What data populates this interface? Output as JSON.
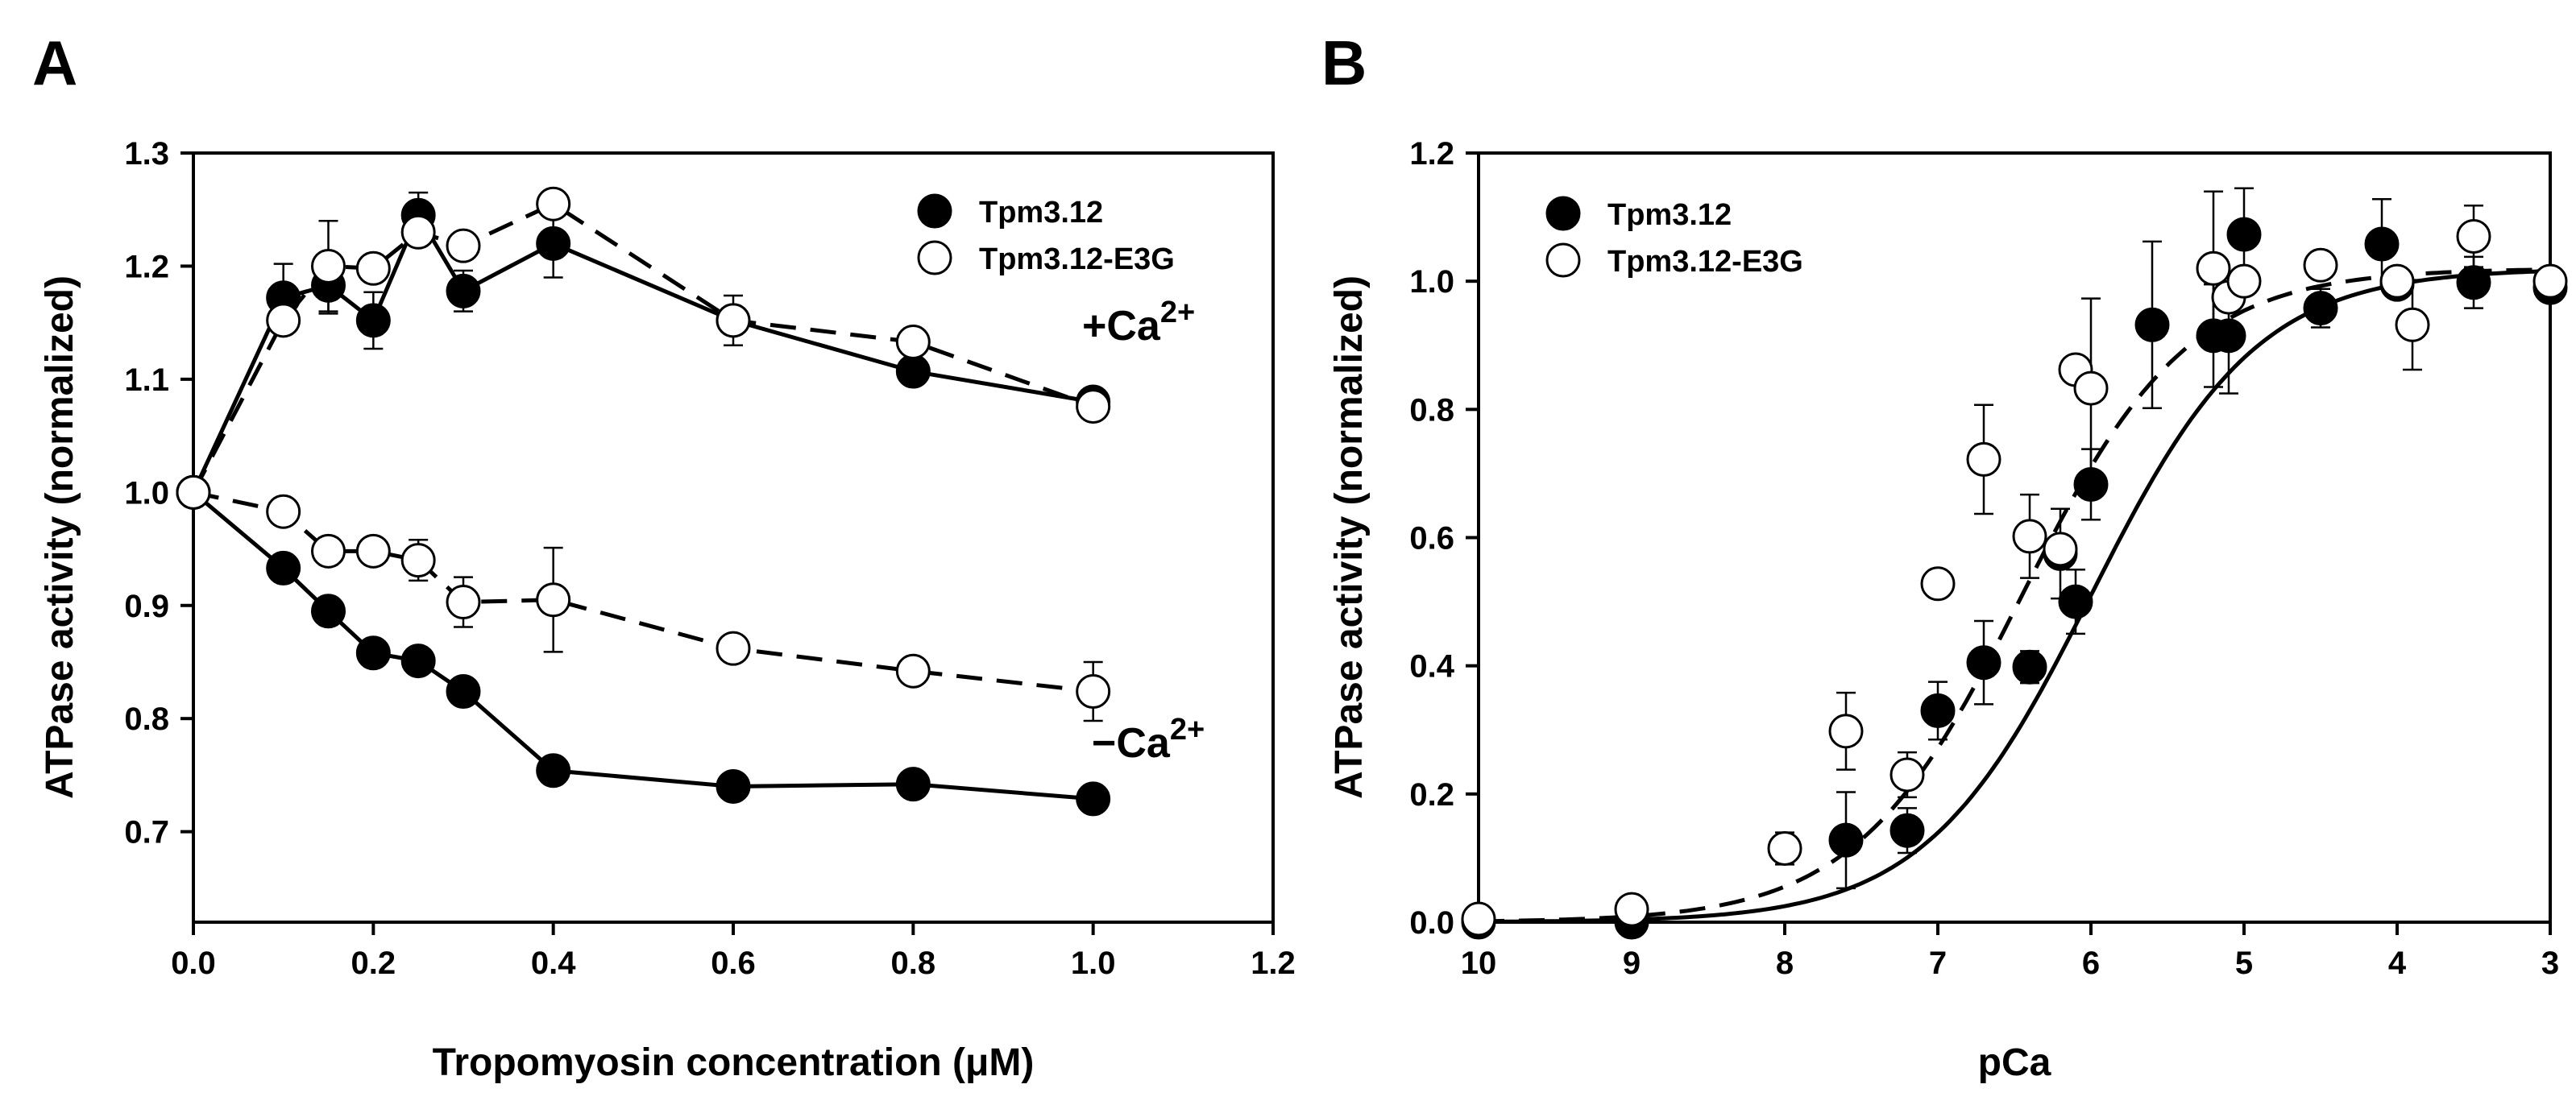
{
  "chart_data": [
    {
      "panel": "A",
      "type": "line",
      "xlabel": "Tropomyosin concentration (μM)",
      "ylabel": "ATPase activity (normalized)",
      "xlim": [
        0.0,
        1.2
      ],
      "ylim": [
        0.62,
        1.3
      ],
      "xticks": [
        0.0,
        0.2,
        0.4,
        0.6,
        0.8,
        1.0,
        1.2
      ],
      "xtick_labels": [
        "0.0",
        "0.2",
        "0.4",
        "0.6",
        "0.8",
        "1.0",
        "1.2"
      ],
      "yticks": [
        0.7,
        0.8,
        0.9,
        1.0,
        1.1,
        1.2,
        1.3
      ],
      "ytick_labels": [
        "0.7",
        "0.8",
        "0.9",
        "1.0",
        "1.1",
        "1.2",
        "1.3"
      ],
      "grid": false,
      "legend": {
        "position": "top-right",
        "entries": [
          "Tpm3.12",
          "Tpm3.12-E3G"
        ]
      },
      "annotations": [
        {
          "text": "+Ca",
          "sup": "2+",
          "x": 1.0,
          "y": 1.085,
          "anchor": "right-of-point"
        },
        {
          "text": "−Ca",
          "sup": "2+",
          "x": 1.0,
          "y": 0.78,
          "anchor": "right-of-point"
        }
      ],
      "series": [
        {
          "name": "Tpm3.12",
          "condition": "+Ca2+",
          "marker": "filled-circle",
          "linestyle": "solid",
          "x": [
            0.0,
            0.1,
            0.15,
            0.2,
            0.25,
            0.3,
            0.4,
            0.6,
            0.8,
            1.0
          ],
          "y": [
            1.0,
            1.172,
            1.183,
            1.152,
            1.245,
            1.178,
            1.22,
            1.152,
            1.107,
            1.08
          ],
          "err": [
            0,
            0.03,
            0.025,
            0.025,
            0.02,
            0.018,
            0.03,
            0.022,
            0.0,
            0.0
          ]
        },
        {
          "name": "Tpm3.12-E3G",
          "condition": "+Ca2+",
          "marker": "open-circle",
          "linestyle": "dashed",
          "x": [
            0.0,
            0.1,
            0.15,
            0.2,
            0.25,
            0.3,
            0.4,
            0.6,
            0.8,
            1.0
          ],
          "y": [
            1.0,
            1.152,
            1.2,
            1.198,
            1.23,
            1.218,
            1.255,
            1.152,
            1.133,
            1.076
          ],
          "err": [
            0,
            0.0,
            0.04,
            0.0,
            0.0,
            0.0,
            0.0,
            0.0,
            0.0,
            0.0
          ]
        },
        {
          "name": "Tpm3.12",
          "condition": "-Ca2+",
          "marker": "filled-circle",
          "linestyle": "solid",
          "x": [
            0.0,
            0.1,
            0.15,
            0.2,
            0.25,
            0.3,
            0.4,
            0.6,
            0.8,
            1.0
          ],
          "y": [
            1.0,
            0.933,
            0.895,
            0.858,
            0.851,
            0.824,
            0.754,
            0.74,
            0.742,
            0.729
          ],
          "err": [
            0,
            0.0,
            0.0,
            0.0,
            0.0,
            0.0,
            0.0,
            0.0,
            0.0,
            0.0
          ]
        },
        {
          "name": "Tpm3.12-E3G",
          "condition": "-Ca2+",
          "marker": "open-circle",
          "linestyle": "dashed",
          "x": [
            0.0,
            0.1,
            0.15,
            0.2,
            0.25,
            0.3,
            0.4,
            0.6,
            0.8,
            1.0
          ],
          "y": [
            1.0,
            0.983,
            0.948,
            0.948,
            0.94,
            0.903,
            0.905,
            0.862,
            0.842,
            0.824
          ],
          "err": [
            0,
            0.0,
            0.012,
            0.0,
            0.018,
            0.022,
            0.046,
            0.0,
            0.0,
            0.026
          ]
        }
      ]
    },
    {
      "panel": "B",
      "type": "scatter",
      "xlabel": "pCa",
      "ylabel": "ATPase activity (normalized)",
      "xlim": [
        10,
        3
      ],
      "x_reversed": true,
      "ylim": [
        0.0,
        1.2
      ],
      "xticks": [
        10,
        9,
        8,
        7,
        6,
        5,
        4,
        3
      ],
      "xtick_labels": [
        "10",
        "9",
        "8",
        "7",
        "6",
        "5",
        "4",
        "3"
      ],
      "yticks": [
        0.0,
        0.2,
        0.4,
        0.6,
        0.8,
        1.0,
        1.2
      ],
      "ytick_labels": [
        "0.0",
        "0.2",
        "0.4",
        "0.6",
        "0.8",
        "1.0",
        "1.2"
      ],
      "grid": false,
      "legend": {
        "position": "top-left",
        "entries": [
          "Tpm3.12",
          "Tpm3.12-E3G"
        ]
      },
      "series": [
        {
          "name": "Tpm3.12",
          "marker": "filled-circle",
          "x": [
            10,
            9,
            7.6,
            7.2,
            7.0,
            6.7,
            6.4,
            6.2,
            6.1,
            6.0,
            5.6,
            5.2,
            5.1,
            5.0,
            4.5,
            4.1,
            4.0,
            3.5,
            3.0
          ],
          "y": [
            0.0,
            0.0,
            0.128,
            0.143,
            0.33,
            0.405,
            0.398,
            0.575,
            0.5,
            0.683,
            0.932,
            0.915,
            0.915,
            1.073,
            0.958,
            1.058,
            0.995,
            0.998,
            0.99
          ],
          "err": [
            0,
            0,
            0.075,
            0.035,
            0.045,
            0.065,
            0.025,
            0.07,
            0.05,
            0.055,
            0.13,
            0.08,
            0.09,
            0.072,
            0.03,
            0.07,
            0.0,
            0.04,
            0.0
          ],
          "fit": {
            "model": "hill",
            "bottom": 0.0,
            "top": 1.02,
            "pCa50": 6.0,
            "nH": 0.8,
            "linestyle": "solid"
          }
        },
        {
          "name": "Tpm3.12-E3G",
          "marker": "open-circle",
          "x": [
            10,
            9,
            8,
            7.6,
            7.2,
            7.0,
            6.7,
            6.4,
            6.2,
            6.1,
            6.0,
            5.2,
            5.1,
            5.0,
            4.5,
            4.0,
            3.9,
            3.5,
            3.0
          ],
          "y": [
            0.005,
            0.02,
            0.115,
            0.298,
            0.23,
            0.528,
            0.722,
            0.602,
            0.582,
            0.862,
            0.833,
            1.02,
            0.975,
            1.0,
            1.025,
            1.0,
            0.932,
            1.07,
            1.0
          ],
          "err": [
            0,
            0.0,
            0.025,
            0.06,
            0.035,
            0.0,
            0.085,
            0.065,
            0.0,
            0.0,
            0.14,
            0.12,
            0.0,
            0.0,
            0.0,
            0.0,
            0.07,
            0.048,
            0.0
          ],
          "fit": {
            "model": "hill",
            "bottom": 0.0,
            "top": 1.02,
            "pCa50": 6.45,
            "nH": 0.8,
            "linestyle": "dashed"
          }
        }
      ]
    }
  ]
}
